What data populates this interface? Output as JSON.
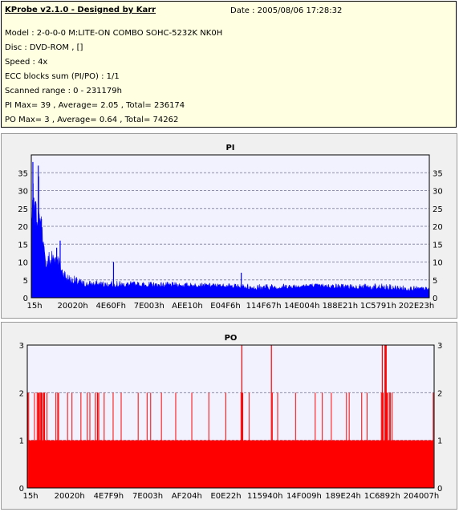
{
  "info": {
    "title": "KProbe v2.1.0 - Designed by Karr",
    "date": "Date : 2005/08/06 17:28:32",
    "lines": [
      "Model : 2-0-0-0 M:LITE-ON COMBO SOHC-5232K NK0H",
      "Disc : DVD-ROM ,  []",
      "Speed : 4x",
      "ECC blocks sum (PI/PO) : 1/1",
      "Scanned range : 0 - 231179h",
      "PI Max= 39 , Average= 2.05 , Total= 236174",
      "PO Max= 3 , Average= 0.64 , Total= 74262"
    ]
  },
  "colors": {
    "pi": "#0000ff",
    "po": "#ff0000",
    "plot_bg": "#f2f2ff",
    "grid": "#8c8ca8"
  },
  "chart_data": [
    {
      "type": "bar",
      "title": "PI",
      "x_tick_labels": [
        "15h",
        "20020h",
        "4E60Fh",
        "7E003h",
        "AEE10h",
        "E04F6h",
        "114F67h",
        "14E004h",
        "188E21h",
        "1C5791h",
        "202E23h"
      ],
      "y_ticks": [
        0,
        5,
        10,
        15,
        20,
        25,
        30,
        35
      ],
      "ylim": [
        0,
        40
      ],
      "x_range": [
        0,
        2275
      ],
      "grid": true,
      "max": 39,
      "peaks": [
        [
          9,
          38
        ],
        [
          40,
          37
        ],
        [
          10,
          32
        ],
        [
          42,
          34
        ],
        [
          14,
          28
        ],
        [
          25,
          27
        ],
        [
          58,
          22
        ],
        [
          145,
          14
        ],
        [
          165,
          16
        ],
        [
          215,
          5
        ],
        [
          470,
          10
        ],
        [
          1200,
          7
        ]
      ],
      "profile": [
        [
          0,
          20,
          28
        ],
        [
          55,
          20,
          25
        ],
        [
          80,
          8,
          12
        ],
        [
          110,
          8,
          15
        ],
        [
          145,
          10,
          14
        ],
        [
          175,
          6,
          10
        ],
        [
          210,
          4,
          7
        ],
        [
          300,
          3,
          5
        ],
        [
          1100,
          3,
          4
        ],
        [
          1300,
          2,
          4
        ],
        [
          1600,
          3,
          4
        ],
        [
          2000,
          2,
          4
        ],
        [
          2275,
          2,
          3
        ]
      ]
    },
    {
      "type": "bar",
      "title": "PO",
      "x_tick_labels": [
        "15h",
        "20020h",
        "4E7F9h",
        "7E003h",
        "AF204h",
        "E0E22h",
        "115940h",
        "14F009h",
        "189E24h",
        "1C6892h",
        "204007h"
      ],
      "y_ticks": [
        0,
        1,
        2,
        3
      ],
      "ylim": [
        0,
        3
      ],
      "x_range": [
        0,
        2275
      ],
      "grid": true,
      "max": 3,
      "base_level": 1,
      "spikes_3": [
        1200,
        1365,
        1985,
        2000,
        2003,
        2007
      ],
      "spikes_2": [
        3,
        8,
        40,
        55,
        60,
        65,
        68,
        75,
        78,
        80,
        84,
        92,
        95,
        97,
        110,
        160,
        170,
        175,
        225,
        250,
        300,
        335,
        350,
        380,
        392,
        394,
        400,
        430,
        480,
        525,
        620,
        670,
        690,
        750,
        830,
        920,
        1015,
        1110,
        1195,
        1205,
        1240,
        1370,
        1400,
        1500,
        1610,
        1650,
        1700,
        1785,
        1800,
        1870,
        1900,
        1980,
        1990,
        2010,
        2015,
        2025,
        2030,
        2040,
        2270
      ]
    }
  ]
}
